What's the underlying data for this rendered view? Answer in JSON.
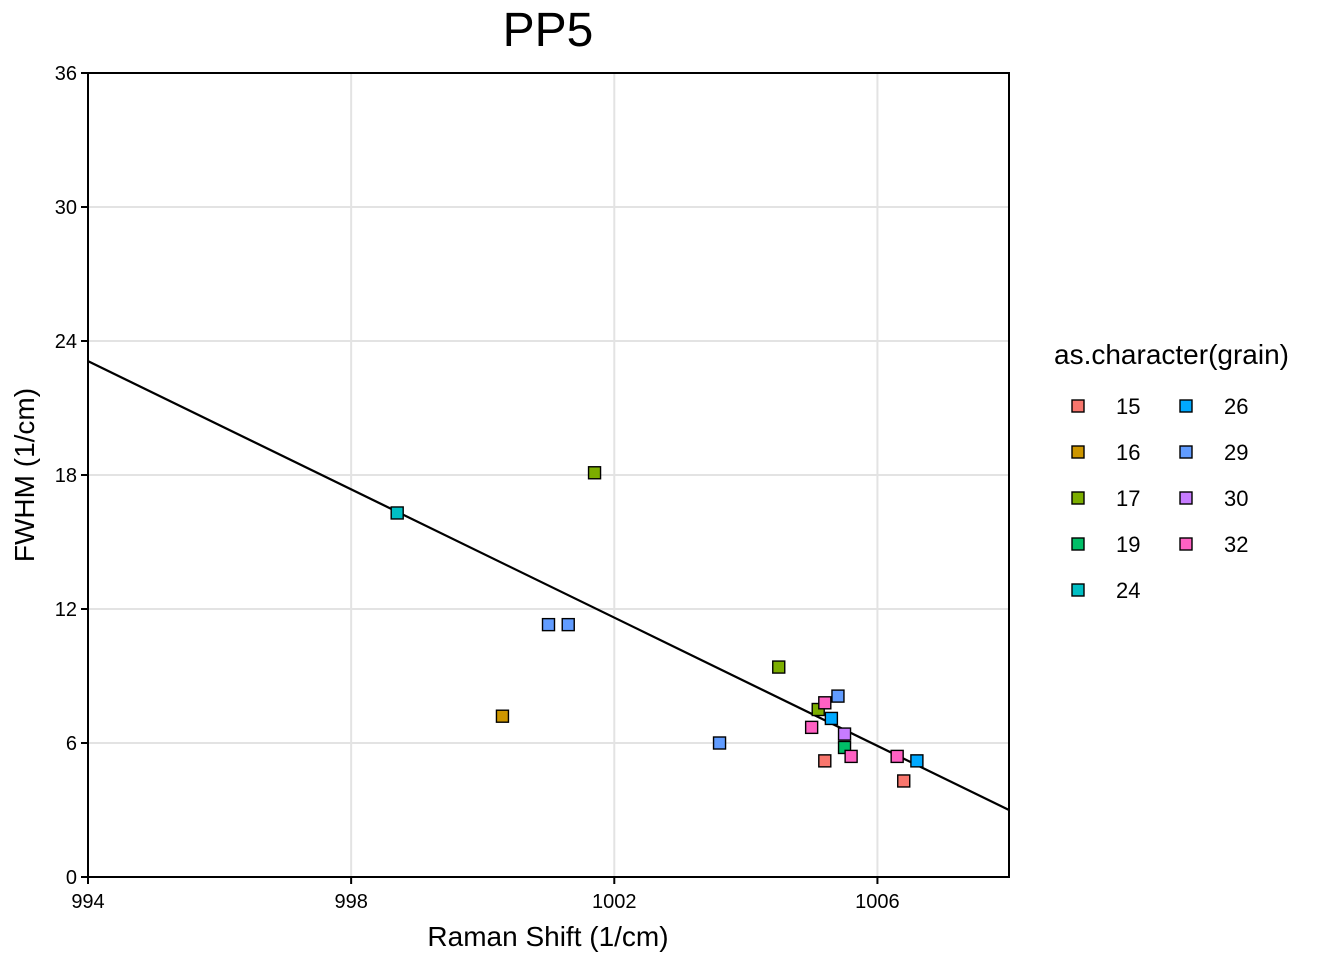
{
  "chart_data": {
    "type": "scatter",
    "title": "PP5",
    "xlabel": "Raman Shift (1/cm)",
    "ylabel": "FWHM (1/cm)",
    "xlim": [
      994,
      1008
    ],
    "ylim": [
      0,
      36
    ],
    "x_ticks": [
      994,
      998,
      1002,
      1006
    ],
    "y_ticks": [
      0,
      6,
      12,
      18,
      24,
      30,
      36
    ],
    "grid": true,
    "legend": {
      "title": "as.character(grain)",
      "placement": "right"
    },
    "series": [
      {
        "name": "15",
        "color": "#F8766D",
        "points": [
          [
            1005.2,
            5.2
          ],
          [
            1006.4,
            4.3
          ]
        ]
      },
      {
        "name": "16",
        "color": "#CD9600",
        "points": [
          [
            1000.3,
            7.2
          ]
        ]
      },
      {
        "name": "17",
        "color": "#7CAE00",
        "points": [
          [
            1001.7,
            18.1
          ],
          [
            1004.5,
            9.4
          ],
          [
            1005.1,
            7.5
          ]
        ]
      },
      {
        "name": "19",
        "color": "#00BE67",
        "points": [
          [
            1005.5,
            5.8
          ]
        ]
      },
      {
        "name": "24",
        "color": "#00BFC4",
        "points": [
          [
            998.7,
            16.3
          ]
        ]
      },
      {
        "name": "26",
        "color": "#00A9FF",
        "points": [
          [
            1005.3,
            7.1
          ],
          [
            1006.6,
            5.2
          ]
        ]
      },
      {
        "name": "29",
        "color": "#619CFF",
        "points": [
          [
            1001.0,
            11.3
          ],
          [
            1001.3,
            11.3
          ],
          [
            1003.6,
            6.0
          ],
          [
            1005.4,
            8.1
          ]
        ]
      },
      {
        "name": "30",
        "color": "#C77CFF",
        "points": [
          [
            1005.5,
            6.4
          ]
        ]
      },
      {
        "name": "32",
        "color": "#FF61C3",
        "points": [
          [
            1005.0,
            6.7
          ],
          [
            1005.2,
            7.8
          ],
          [
            1005.6,
            5.4
          ],
          [
            1006.3,
            5.4
          ]
        ]
      }
    ],
    "trend_line": {
      "x": [
        994,
        1008
      ],
      "y": [
        23.1,
        3.0
      ]
    }
  }
}
